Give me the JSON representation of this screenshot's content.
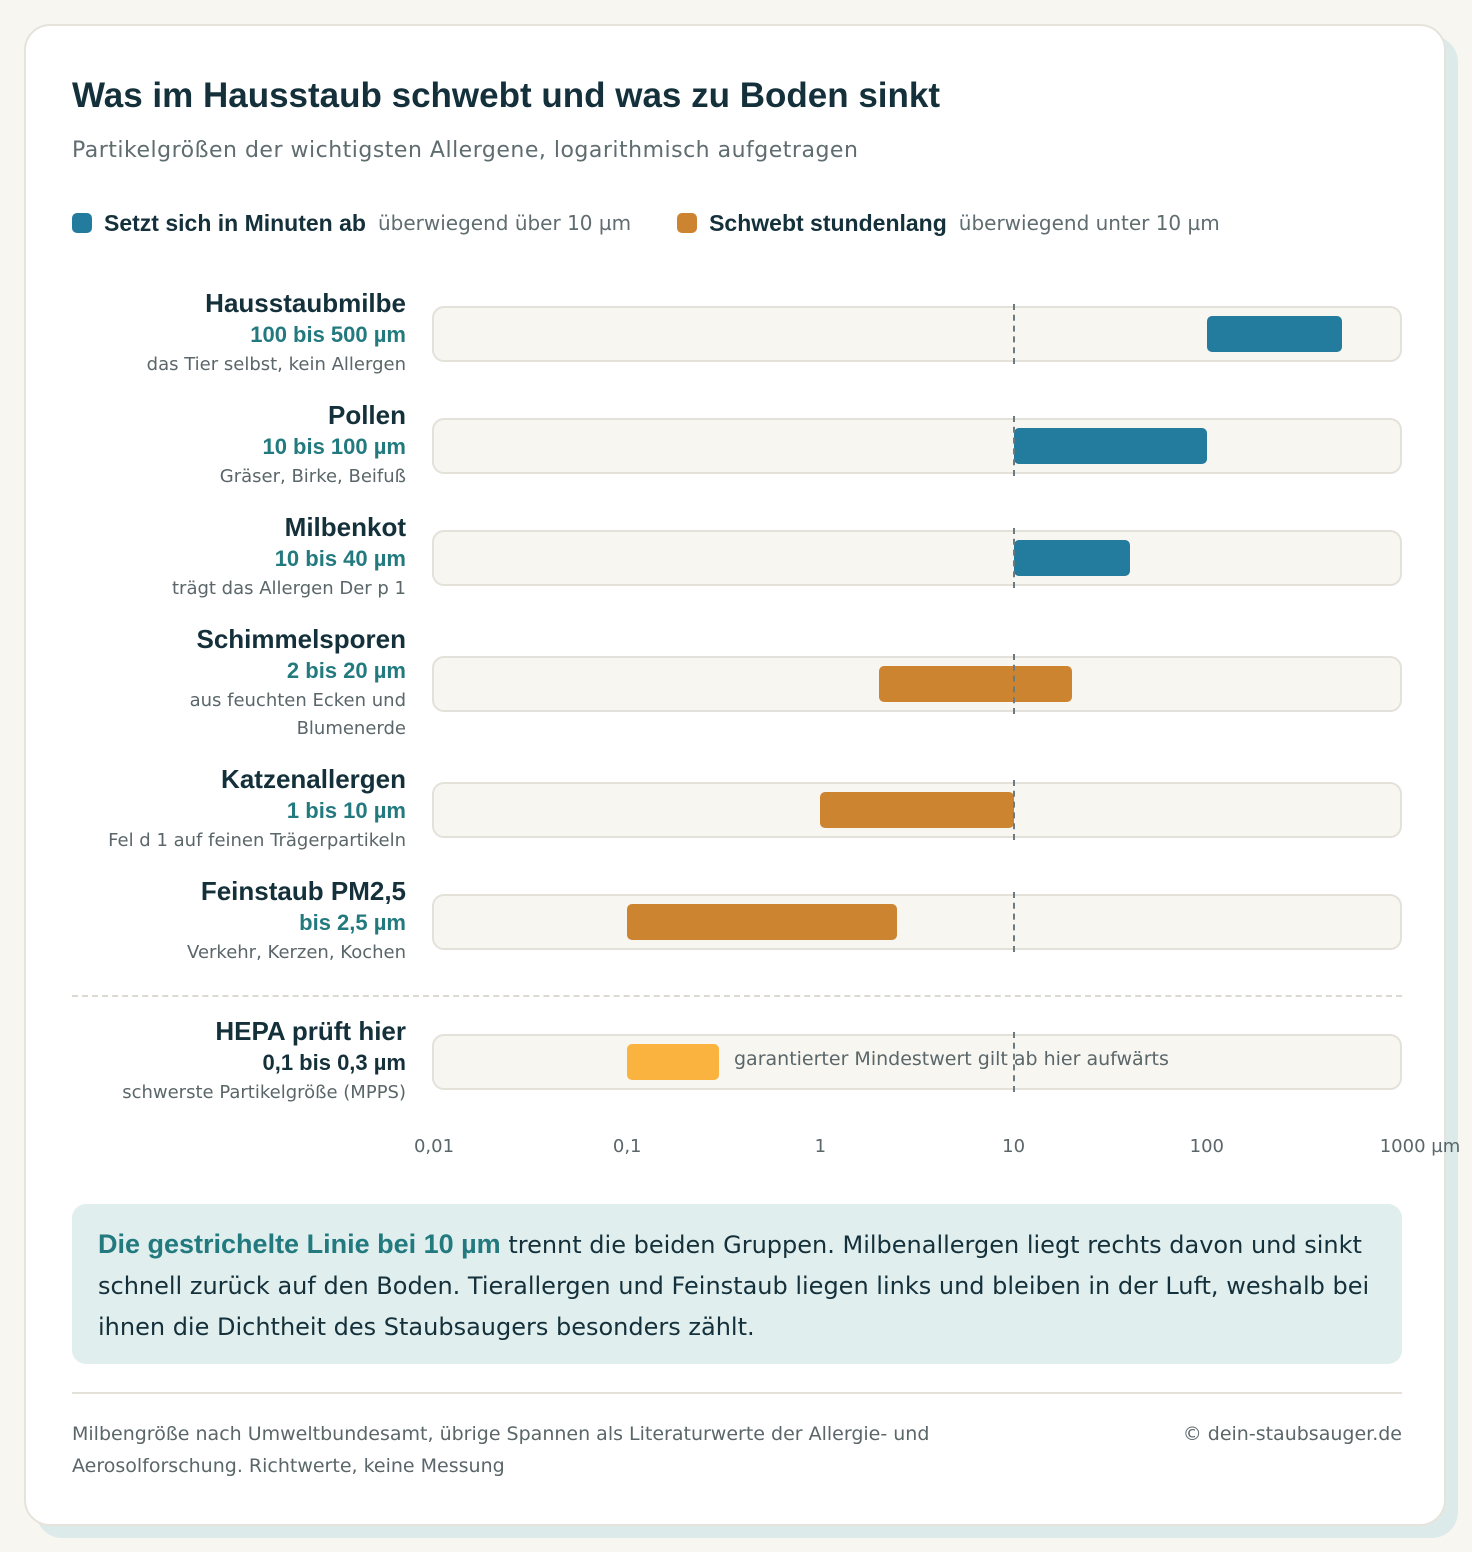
{
  "title": "Was im Hausstaub schwebt und was zu Boden sinkt",
  "subtitle": "Partikelgrößen der wichtigsten Allergene, logarithmisch aufgetragen",
  "legend": [
    {
      "name": "Setzt sich in Minuten ab",
      "note": "überwiegend über 10 µm",
      "color": "#237b9e"
    },
    {
      "name": "Schwebt stundenlang",
      "note": "überwiegend unter 10 µm",
      "color": "#cd8431"
    }
  ],
  "chart_data": {
    "type": "bar",
    "orientation": "horizontal-range",
    "x_scale": "log",
    "xlim": [
      0.01,
      1000
    ],
    "x_unit": "µm",
    "x_tick_labels": [
      "0,01",
      "0,1",
      "1",
      "10",
      "100",
      "1000 µm"
    ],
    "x_tick_values": [
      0.01,
      0.1,
      1,
      10,
      100,
      1000
    ],
    "threshold_line": 10,
    "rows": [
      {
        "name": "Hausstaubmilbe",
        "range_label": "100 bis 500 µm",
        "desc": "das Tier selbst, kein Allergen",
        "min": 100,
        "max": 500,
        "group": "Setzt sich in Minuten ab",
        "color": "#237b9e"
      },
      {
        "name": "Pollen",
        "range_label": "10 bis 100 µm",
        "desc": "Gräser, Birke, Beifuß",
        "min": 10,
        "max": 100,
        "group": "Setzt sich in Minuten ab",
        "color": "#237b9e"
      },
      {
        "name": "Milbenkot",
        "range_label": "10 bis 40 µm",
        "desc": "trägt das Allergen Der p 1",
        "min": 10,
        "max": 40,
        "group": "Setzt sich in Minuten ab",
        "color": "#237b9e"
      },
      {
        "name": "Schimmelsporen",
        "range_label": "2 bis 20 µm",
        "desc": "aus feuchten Ecken und Blumenerde",
        "min": 2,
        "max": 20,
        "group": "Schwebt stundenlang",
        "color": "#cd8431"
      },
      {
        "name": "Katzenallergen",
        "range_label": "1 bis 10 µm",
        "desc": "Fel d 1 auf feinen Trägerpartikeln",
        "min": 1,
        "max": 10,
        "group": "Schwebt stundenlang",
        "color": "#cd8431"
      },
      {
        "name": "Feinstaub PM2,5",
        "range_label": "bis 2,5 µm",
        "desc": "Verkehr, Kerzen, Kochen",
        "min": 0.1,
        "max": 2.5,
        "group": "Schwebt stundenlang",
        "color": "#cd8431"
      }
    ],
    "hepa": {
      "name": "HEPA prüft hier",
      "range_label": "0,1 bis 0,3 µm",
      "desc": "schwerste Partikelgröße (MPPS)",
      "min": 0.1,
      "max": 0.3,
      "color": "#fbb33f",
      "annotation": "garantierter Mindestwert gilt ab hier aufwärts"
    }
  },
  "note": {
    "strong": "Die gestrichelte Linie bei 10 µm",
    "text": " trennt die beiden Gruppen. Milbenallergen liegt rechts davon und sinkt schnell zurück auf den Boden. Tierallergen und Feinstaub liegen links und bleiben in der Luft, weshalb bei ihnen die Dichtheit des Staubsaugers besonders zählt."
  },
  "footer": {
    "source": "Milbengröße nach Umweltbundesamt, übrige Spannen als Literaturwerte der Allergie- und Aerosolforschung. Richtwerte, keine Messung",
    "credit": "© dein-staubsauger.de"
  }
}
